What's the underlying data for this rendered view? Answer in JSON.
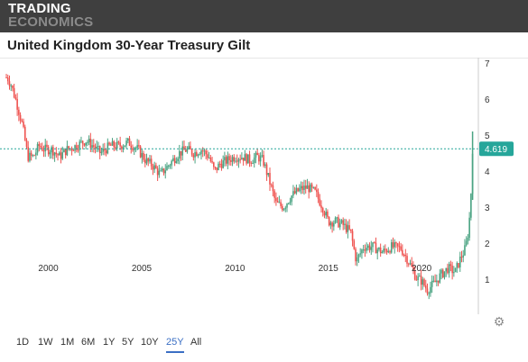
{
  "header": {
    "logo_line1": "TRADING",
    "logo_line2": "ECONOMICS"
  },
  "title": "United Kingdom 30-Year Treasury Gilt",
  "ranges": [
    "1D",
    "1W",
    "1M",
    "6M",
    "1Y",
    "5Y",
    "10Y",
    "25Y",
    "All"
  ],
  "active_range": "25Y",
  "colors": {
    "up": "#4aa382",
    "down": "#ef5350",
    "last_badge": "#26a69a",
    "topbar": "#3f3f3f"
  },
  "icons": {
    "settings": "gear-icon"
  },
  "chart_data": {
    "type": "candlestick",
    "title": "United Kingdom 30-Year Treasury Gilt",
    "last_value": 4.619,
    "last_label": "4.619",
    "xlim": [
      1997.7,
      2022.75
    ],
    "ylim": [
      0,
      7
    ],
    "y_ticks": [
      1,
      2,
      3,
      4,
      5,
      6,
      7
    ],
    "x_ticks": [
      2000,
      2005,
      2010,
      2015,
      2020
    ],
    "y_axis_position": "right",
    "grid": false,
    "legend": "none",
    "series": [
      {
        "x": [
          1997.8,
          1998.0,
          1998.3,
          1998.6,
          1998.9,
          1999.2,
          1999.5,
          1999.8,
          2000.2,
          2000.6,
          2001.0,
          2001.5,
          2002.0,
          2002.4,
          2002.8,
          2003.3,
          2003.8,
          2004.3,
          2004.8,
          2005.2,
          2005.6,
          2006.0,
          2006.5,
          2007.0,
          2007.4,
          2007.8,
          2008.2,
          2008.6,
          2008.9,
          2009.2,
          2009.6,
          2010.0,
          2010.4,
          2010.8,
          2011.2,
          2011.5,
          2011.8,
          2012.2,
          2012.6,
          2013.0,
          2013.5,
          2013.9,
          2014.3,
          2014.7,
          2015.0,
          2015.4,
          2015.8,
          2016.2,
          2016.5,
          2016.9,
          2017.4,
          2017.9,
          2018.4,
          2018.9,
          2019.3,
          2019.7,
          2020.0,
          2020.3,
          2020.7,
          2021.0,
          2021.4,
          2021.8,
          2022.1,
          2022.3,
          2022.45,
          2022.55,
          2022.62,
          2022.68,
          2022.73
        ],
        "y": [
          6.6,
          6.4,
          5.9,
          5.3,
          4.4,
          4.4,
          4.7,
          4.6,
          4.6,
          4.4,
          4.6,
          4.7,
          4.85,
          4.7,
          4.5,
          4.7,
          4.7,
          4.8,
          4.6,
          4.3,
          4.15,
          3.9,
          4.2,
          4.5,
          4.6,
          4.5,
          4.6,
          4.4,
          4.0,
          4.2,
          4.3,
          4.4,
          4.4,
          4.3,
          4.4,
          4.3,
          3.8,
          3.1,
          3.0,
          3.3,
          3.5,
          3.55,
          3.4,
          3.0,
          2.6,
          2.6,
          2.5,
          2.3,
          1.5,
          1.9,
          1.9,
          1.75,
          1.9,
          1.85,
          1.5,
          1.05,
          0.95,
          0.7,
          0.9,
          1.1,
          1.3,
          1.2,
          1.6,
          1.8,
          2.1,
          2.6,
          3.1,
          3.8,
          4.619
        ]
      }
    ]
  }
}
